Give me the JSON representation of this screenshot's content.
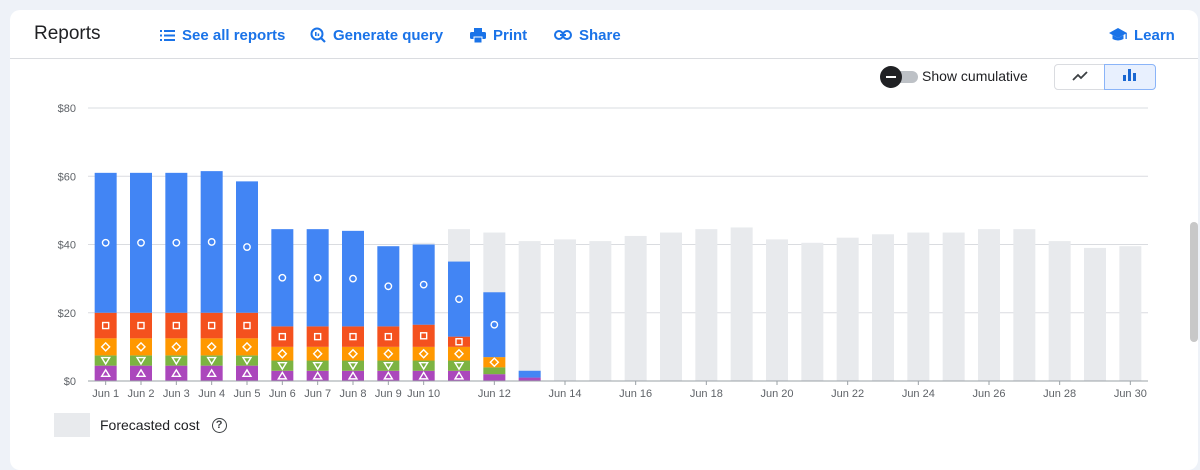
{
  "header": {
    "title": "Reports",
    "see_all": "See all reports",
    "generate": "Generate query",
    "print": "Print",
    "share": "Share",
    "learn": "Learn"
  },
  "toolbar": {
    "cumulative_label": "Show cumulative"
  },
  "legend": {
    "forecast_label": "Forecasted cost",
    "help": "?"
  },
  "chart_data": {
    "type": "bar",
    "stacked": true,
    "ylim": [
      0,
      80
    ],
    "yticks": [
      "$0",
      "$20",
      "$40",
      "$60",
      "$80"
    ],
    "ytick_values": [
      0,
      20,
      40,
      60,
      80
    ],
    "x": [
      "Jun 1",
      "Jun 2",
      "Jun 3",
      "Jun 4",
      "Jun 5",
      "Jun 6",
      "Jun 7",
      "Jun 8",
      "Jun 9",
      "Jun 10",
      "Jun 11",
      "Jun 12",
      "Jun 13",
      "Jun 14",
      "Jun 15",
      "Jun 16",
      "Jun 17",
      "Jun 18",
      "Jun 19",
      "Jun 20",
      "Jun 21",
      "Jun 22",
      "Jun 23",
      "Jun 24",
      "Jun 25",
      "Jun 26",
      "Jun 27",
      "Jun 28",
      "Jun 29",
      "Jun 30"
    ],
    "xtick_labels": [
      "Jun 1",
      "Jun 2",
      "Jun 3",
      "Jun 4",
      "Jun 5",
      "Jun 6",
      "Jun 7",
      "Jun 8",
      "Jun 9",
      "Jun 10",
      "",
      "Jun 12",
      "",
      "Jun 14",
      "",
      "Jun 16",
      "",
      "Jun 18",
      "",
      "Jun 20",
      "",
      "Jun 22",
      "",
      "Jun 24",
      "",
      "Jun 26",
      "",
      "Jun 28",
      "",
      "Jun 30"
    ],
    "series": [
      {
        "color": "#ab47bc",
        "marker": "triangle-up",
        "values": [
          4.5,
          4.5,
          4.5,
          4.5,
          4.5,
          3,
          3,
          3,
          3,
          3,
          3,
          2,
          1,
          0,
          0,
          0,
          0,
          0,
          0,
          0,
          0,
          0,
          0,
          0,
          0,
          0,
          0,
          0,
          0,
          0
        ]
      },
      {
        "color": "#7cb342",
        "marker": "triangle-down",
        "values": [
          3,
          3,
          3,
          3,
          3,
          3,
          3,
          3,
          3,
          3,
          3,
          2,
          0,
          0,
          0,
          0,
          0,
          0,
          0,
          0,
          0,
          0,
          0,
          0,
          0,
          0,
          0,
          0,
          0,
          0
        ]
      },
      {
        "color": "#ff9800",
        "marker": "diamond",
        "values": [
          5,
          5,
          5,
          5,
          5,
          4,
          4,
          4,
          4,
          4,
          4,
          3,
          0,
          0,
          0,
          0,
          0,
          0,
          0,
          0,
          0,
          0,
          0,
          0,
          0,
          0,
          0,
          0,
          0,
          0
        ]
      },
      {
        "color": "#f4511e",
        "marker": "square",
        "values": [
          7.5,
          7.5,
          7.5,
          7.5,
          7.5,
          6,
          6,
          6,
          6,
          6.5,
          3,
          0,
          0,
          0,
          0,
          0,
          0,
          0,
          0,
          0,
          0,
          0,
          0,
          0,
          0,
          0,
          0,
          0,
          0,
          0
        ]
      },
      {
        "color": "#4285f4",
        "marker": "circle",
        "values": [
          41,
          41,
          41,
          41.5,
          38.5,
          28.5,
          28.5,
          28,
          23.5,
          23.5,
          22,
          19,
          2,
          0,
          0,
          0,
          0,
          0,
          0,
          0,
          0,
          0,
          0,
          0,
          0,
          0,
          0,
          0,
          0,
          0
        ]
      }
    ],
    "forecast": {
      "name": "Forecasted cost",
      "color": "#e8eaed",
      "values": [
        0,
        0,
        0,
        0,
        0,
        0,
        0,
        0,
        0,
        40.5,
        44.5,
        43.5,
        41,
        41.5,
        41,
        42.5,
        43.5,
        44.5,
        45,
        41.5,
        40.5,
        42,
        43,
        43.5,
        43.5,
        44.5,
        44.5,
        41,
        39,
        39.5
      ]
    }
  }
}
